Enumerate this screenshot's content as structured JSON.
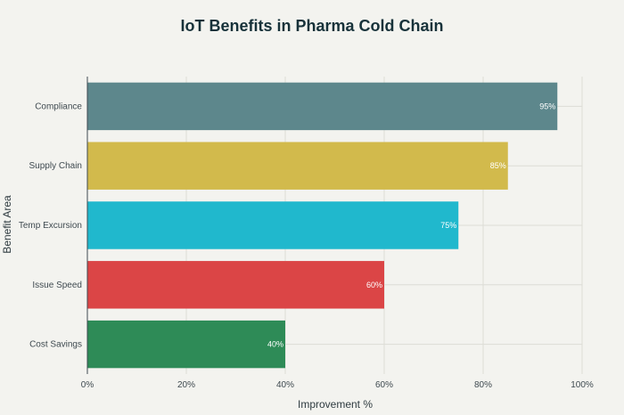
{
  "chart_data": {
    "type": "bar",
    "orientation": "horizontal",
    "title": "IoT Benefits in Pharma Cold Chain",
    "xlabel": "Improvement %",
    "ylabel": "Benefit Area",
    "categories": [
      "Compliance",
      "Supply Chain",
      "Temp Excursion",
      "Issue Speed",
      "Cost Savings"
    ],
    "values": [
      95,
      85,
      75,
      60,
      40
    ],
    "value_labels": [
      "95%",
      "85%",
      "75%",
      "60%",
      "40%"
    ],
    "colors": [
      "#5d878c",
      "#d2ba4c",
      "#20b8cd",
      "#db4546",
      "#2e8b57"
    ],
    "xlim": [
      0,
      100
    ],
    "xticks": [
      0,
      20,
      40,
      60,
      80,
      100
    ],
    "xtick_labels": [
      "0%",
      "20%",
      "40%",
      "60%",
      "80%",
      "100%"
    ],
    "grid": true,
    "legend": "none"
  }
}
